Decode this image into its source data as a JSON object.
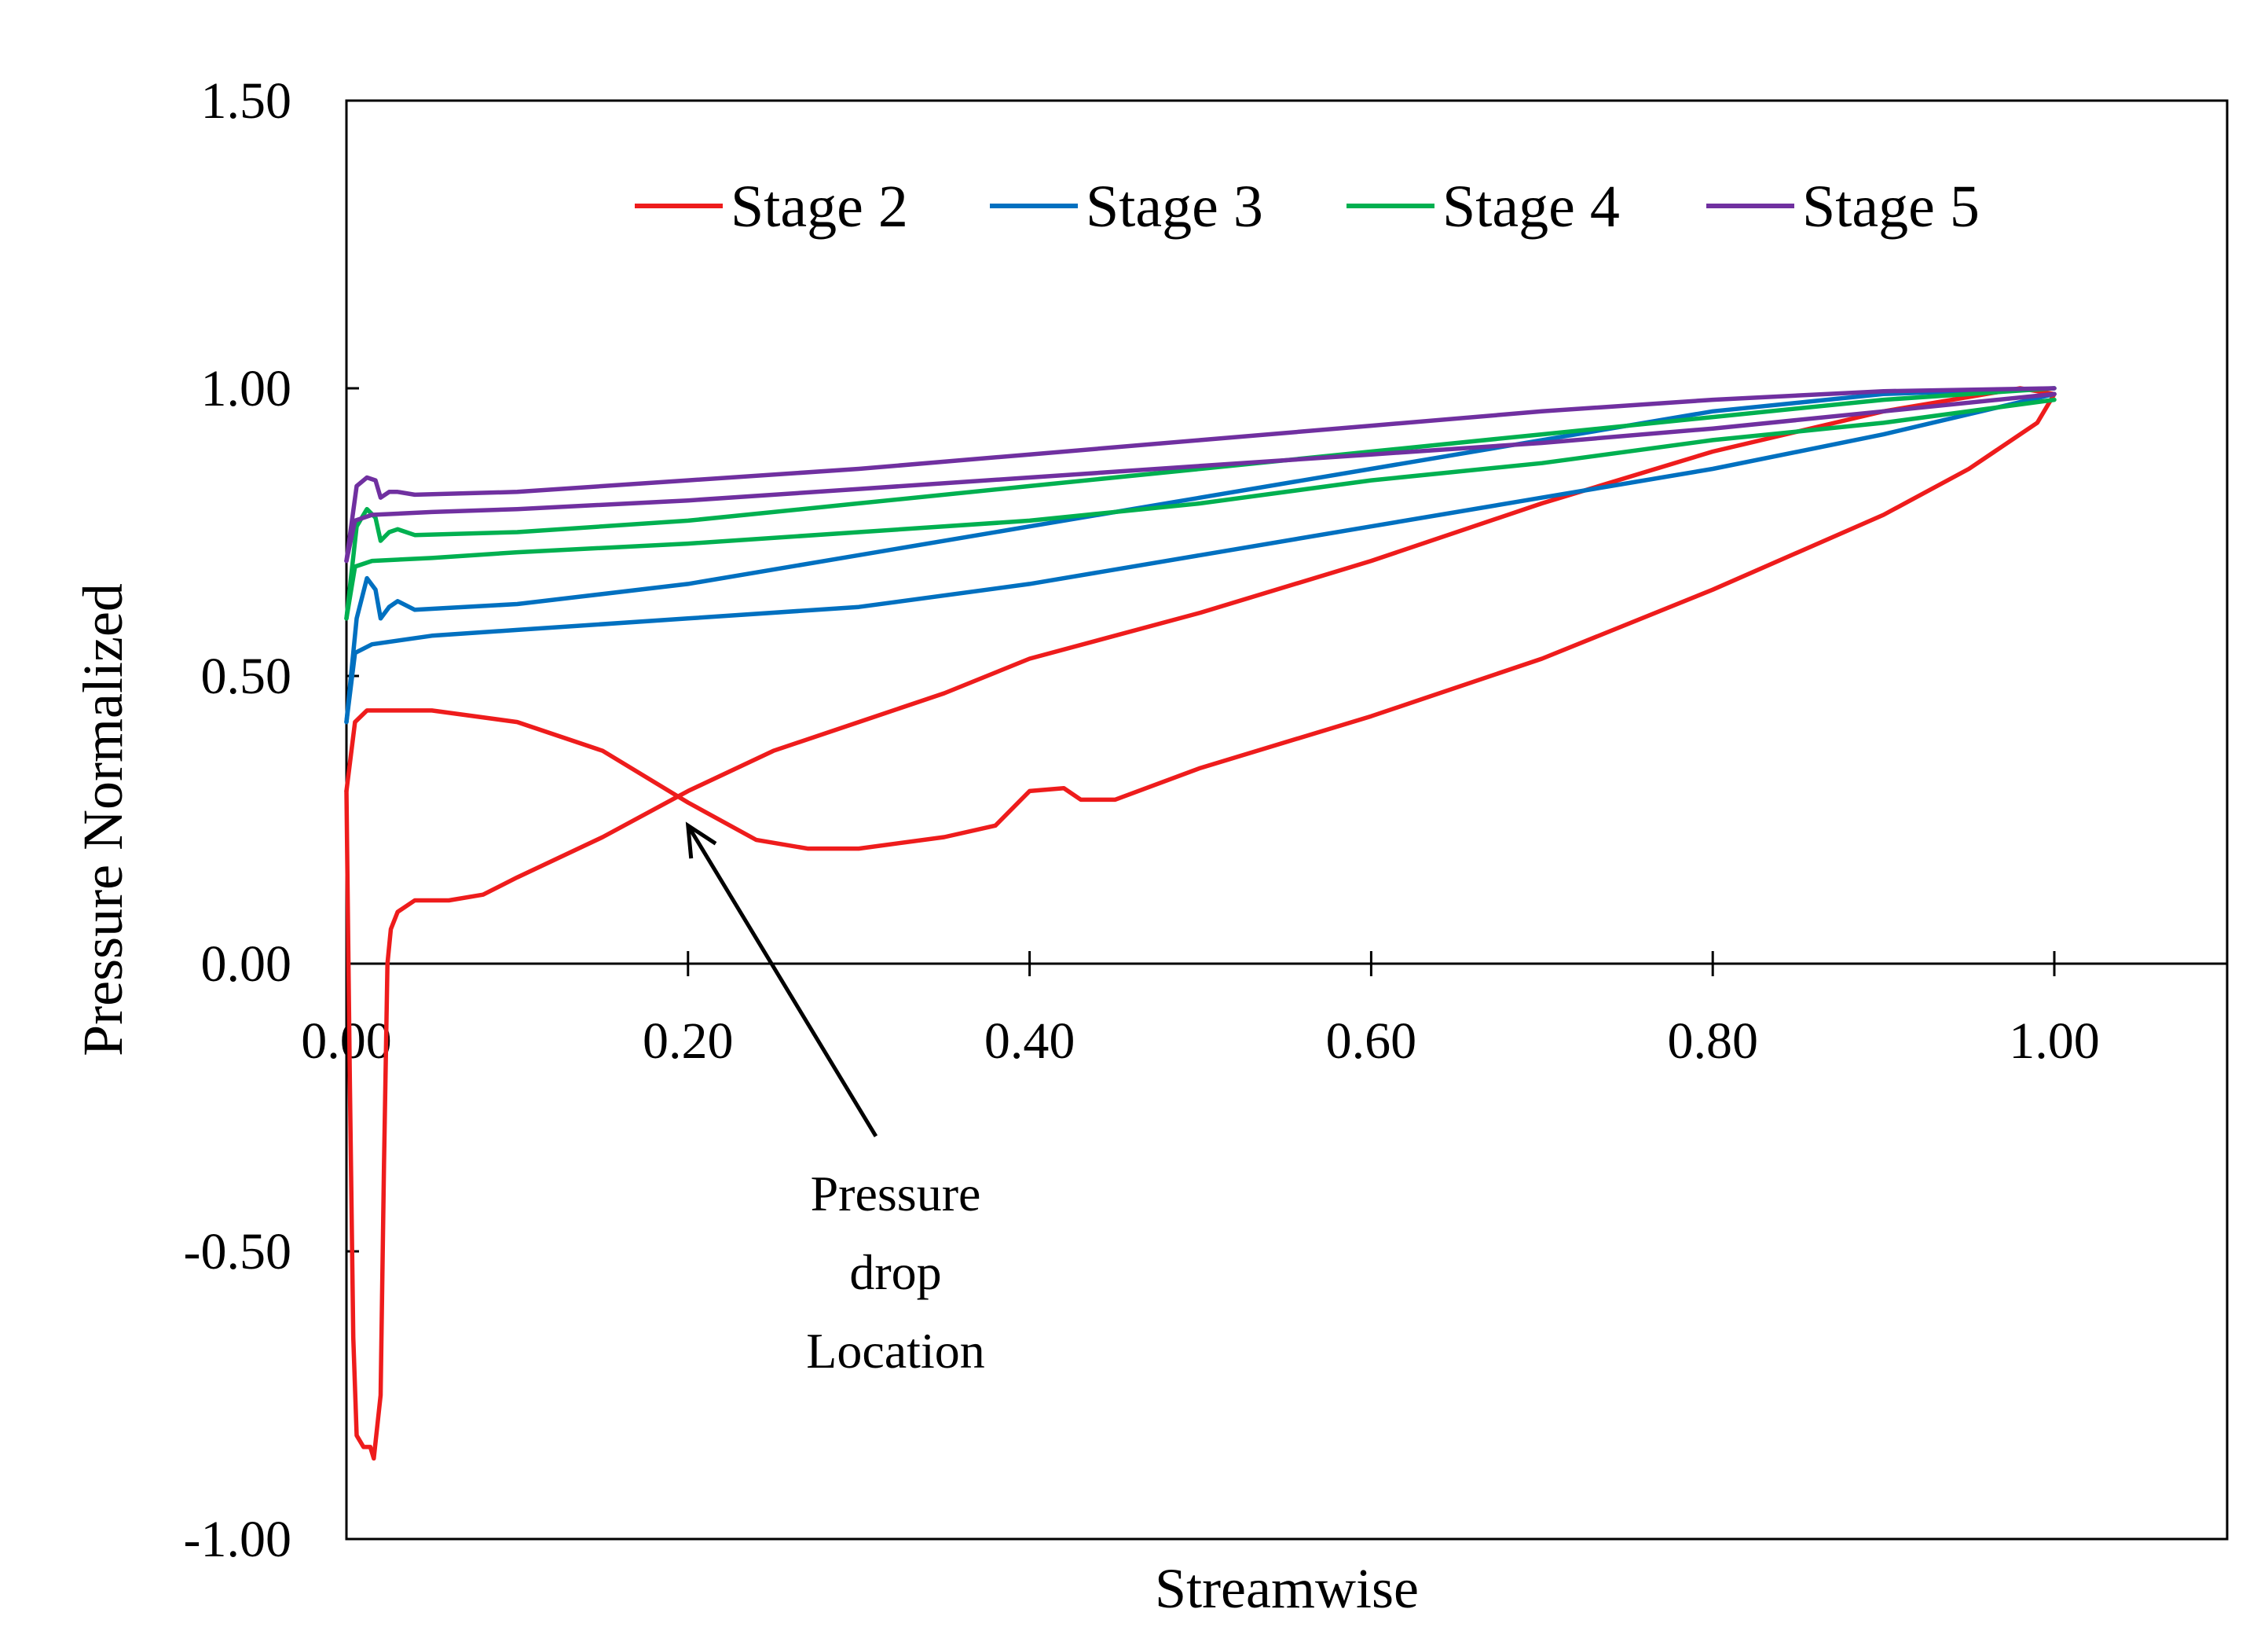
{
  "chart_data": {
    "type": "line",
    "title": "",
    "xlabel": "Streamwise",
    "ylabel": "Pressure Normalized",
    "xlim": [
      0,
      1.1
    ],
    "ylim": [
      -1.0,
      1.5
    ],
    "xticks": [
      0.0,
      0.2,
      0.4,
      0.6,
      0.8,
      1.0
    ],
    "yticks": [
      -1.0,
      -0.5,
      0.0,
      0.5,
      1.0,
      1.5
    ],
    "xtick_labels": [
      "0.00",
      "0.20",
      "0.40",
      "0.60",
      "0.80",
      "1.00"
    ],
    "ytick_labels": [
      "-1.00",
      "-0.50",
      "0.00",
      "0.50",
      "1.00",
      "1.50"
    ],
    "grid": false,
    "legend_position": "top",
    "annotation": {
      "lines": [
        "Pressure",
        "drop",
        "Location"
      ],
      "arrow_from": [
        0.31,
        -0.3
      ],
      "arrow_to": [
        0.2,
        0.24
      ]
    },
    "series": [
      {
        "name": "Stage 2",
        "color": "#ee1c1c",
        "upper": [
          [
            0.0,
            0.3
          ],
          [
            0.005,
            0.42
          ],
          [
            0.012,
            0.44
          ],
          [
            0.05,
            0.44
          ],
          [
            0.1,
            0.42
          ],
          [
            0.15,
            0.37
          ],
          [
            0.2,
            0.28
          ],
          [
            0.24,
            0.215
          ],
          [
            0.27,
            0.2
          ],
          [
            0.3,
            0.2
          ],
          [
            0.35,
            0.22
          ],
          [
            0.38,
            0.24
          ],
          [
            0.4,
            0.3
          ],
          [
            0.42,
            0.305
          ],
          [
            0.43,
            0.285
          ],
          [
            0.45,
            0.285
          ],
          [
            0.5,
            0.34
          ],
          [
            0.6,
            0.43
          ],
          [
            0.7,
            0.53
          ],
          [
            0.8,
            0.65
          ],
          [
            0.9,
            0.78
          ],
          [
            0.95,
            0.86
          ],
          [
            0.99,
            0.94
          ],
          [
            1.0,
            0.99
          ]
        ],
        "lower": [
          [
            0.0,
            0.3
          ],
          [
            0.002,
            -0.2
          ],
          [
            0.004,
            -0.65
          ],
          [
            0.006,
            -0.82
          ],
          [
            0.01,
            -0.84
          ],
          [
            0.014,
            -0.84
          ],
          [
            0.016,
            -0.86
          ],
          [
            0.02,
            -0.75
          ],
          [
            0.022,
            -0.35
          ],
          [
            0.024,
            0.0
          ],
          [
            0.026,
            0.06
          ],
          [
            0.03,
            0.09
          ],
          [
            0.04,
            0.11
          ],
          [
            0.06,
            0.11
          ],
          [
            0.08,
            0.12
          ],
          [
            0.1,
            0.15
          ],
          [
            0.15,
            0.22
          ],
          [
            0.2,
            0.3
          ],
          [
            0.25,
            0.37
          ],
          [
            0.3,
            0.42
          ],
          [
            0.35,
            0.47
          ],
          [
            0.4,
            0.53
          ],
          [
            0.5,
            0.61
          ],
          [
            0.6,
            0.7
          ],
          [
            0.7,
            0.8
          ],
          [
            0.8,
            0.89
          ],
          [
            0.9,
            0.96
          ],
          [
            0.95,
            0.985
          ],
          [
            0.98,
            1.0
          ],
          [
            1.0,
            0.99
          ]
        ]
      },
      {
        "name": "Stage 3",
        "color": "#0070c0",
        "upper": [
          [
            0.0,
            0.42
          ],
          [
            0.006,
            0.6
          ],
          [
            0.012,
            0.67
          ],
          [
            0.017,
            0.65
          ],
          [
            0.02,
            0.6
          ],
          [
            0.025,
            0.62
          ],
          [
            0.03,
            0.63
          ],
          [
            0.04,
            0.615
          ],
          [
            0.1,
            0.625
          ],
          [
            0.2,
            0.66
          ],
          [
            0.3,
            0.71
          ],
          [
            0.4,
            0.76
          ],
          [
            0.5,
            0.81
          ],
          [
            0.6,
            0.86
          ],
          [
            0.7,
            0.91
          ],
          [
            0.8,
            0.96
          ],
          [
            0.9,
            0.99
          ],
          [
            1.0,
            1.0
          ]
        ],
        "lower": [
          [
            0.0,
            0.42
          ],
          [
            0.005,
            0.54
          ],
          [
            0.015,
            0.555
          ],
          [
            0.05,
            0.57
          ],
          [
            0.1,
            0.58
          ],
          [
            0.2,
            0.6
          ],
          [
            0.3,
            0.62
          ],
          [
            0.4,
            0.66
          ],
          [
            0.5,
            0.71
          ],
          [
            0.6,
            0.76
          ],
          [
            0.7,
            0.81
          ],
          [
            0.8,
            0.86
          ],
          [
            0.9,
            0.92
          ],
          [
            1.0,
            0.99
          ]
        ]
      },
      {
        "name": "Stage 4",
        "color": "#00b050",
        "upper": [
          [
            0.0,
            0.6
          ],
          [
            0.006,
            0.76
          ],
          [
            0.012,
            0.79
          ],
          [
            0.017,
            0.775
          ],
          [
            0.02,
            0.735
          ],
          [
            0.025,
            0.75
          ],
          [
            0.03,
            0.755
          ],
          [
            0.04,
            0.745
          ],
          [
            0.1,
            0.75
          ],
          [
            0.2,
            0.77
          ],
          [
            0.3,
            0.8
          ],
          [
            0.4,
            0.83
          ],
          [
            0.5,
            0.86
          ],
          [
            0.6,
            0.89
          ],
          [
            0.7,
            0.92
          ],
          [
            0.8,
            0.95
          ],
          [
            0.9,
            0.98
          ],
          [
            1.0,
            1.0
          ]
        ],
        "lower": [
          [
            0.0,
            0.6
          ],
          [
            0.005,
            0.69
          ],
          [
            0.015,
            0.7
          ],
          [
            0.05,
            0.705
          ],
          [
            0.1,
            0.715
          ],
          [
            0.2,
            0.73
          ],
          [
            0.3,
            0.75
          ],
          [
            0.4,
            0.77
          ],
          [
            0.5,
            0.8
          ],
          [
            0.6,
            0.84
          ],
          [
            0.7,
            0.87
          ],
          [
            0.8,
            0.91
          ],
          [
            0.9,
            0.94
          ],
          [
            1.0,
            0.98
          ]
        ]
      },
      {
        "name": "Stage 5",
        "color": "#7030a0",
        "upper": [
          [
            0.0,
            0.7
          ],
          [
            0.006,
            0.83
          ],
          [
            0.012,
            0.845
          ],
          [
            0.017,
            0.84
          ],
          [
            0.02,
            0.81
          ],
          [
            0.025,
            0.82
          ],
          [
            0.03,
            0.82
          ],
          [
            0.04,
            0.815
          ],
          [
            0.1,
            0.82
          ],
          [
            0.2,
            0.84
          ],
          [
            0.3,
            0.86
          ],
          [
            0.4,
            0.885
          ],
          [
            0.5,
            0.91
          ],
          [
            0.6,
            0.935
          ],
          [
            0.7,
            0.96
          ],
          [
            0.8,
            0.98
          ],
          [
            0.9,
            0.995
          ],
          [
            1.0,
            1.0
          ]
        ],
        "lower": [
          [
            0.0,
            0.7
          ],
          [
            0.005,
            0.77
          ],
          [
            0.015,
            0.78
          ],
          [
            0.05,
            0.785
          ],
          [
            0.1,
            0.79
          ],
          [
            0.2,
            0.805
          ],
          [
            0.3,
            0.825
          ],
          [
            0.4,
            0.845
          ],
          [
            0.5,
            0.865
          ],
          [
            0.6,
            0.885
          ],
          [
            0.7,
            0.905
          ],
          [
            0.8,
            0.93
          ],
          [
            0.9,
            0.96
          ],
          [
            1.0,
            0.99
          ]
        ]
      }
    ]
  }
}
